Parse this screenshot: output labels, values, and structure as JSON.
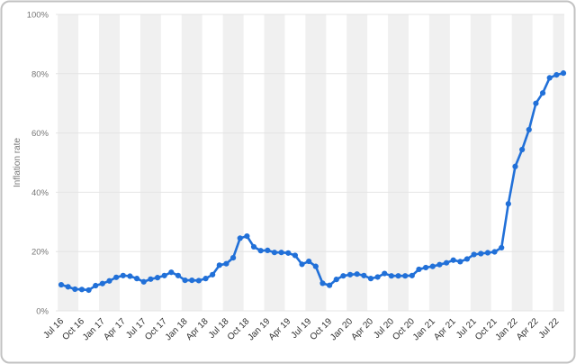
{
  "chart_data": {
    "type": "line",
    "title": "",
    "ylabel": "Inflation rate",
    "xlabel": "",
    "ylim": [
      0,
      100
    ],
    "y_tick_values": [
      0,
      20,
      40,
      60,
      80,
      100
    ],
    "y_tick_labels": [
      "0%",
      "20%",
      "40%",
      "60%",
      "80%",
      "100%"
    ],
    "x_tick_labels": [
      "Jul 16",
      "Oct 16",
      "Jan 17",
      "Apr 17",
      "Jul 17",
      "Oct 17",
      "Jan 18",
      "Apr 18",
      "Jul 18",
      "Oct 18",
      "Jan 19",
      "Apr 19",
      "Jul 19",
      "Oct 19",
      "Jan 20",
      "Apr 20",
      "Jul 20",
      "Oct 20",
      "Jan 21",
      "Apr 21",
      "Jul 21",
      "Oct 21",
      "Jan 22",
      "Apr 22",
      "Jul 22"
    ],
    "months_per_tick": 3,
    "series": [
      {
        "name": "Inflation rate",
        "start_label": "Jul 16",
        "frequency": "monthly",
        "values": [
          8.8,
          8.1,
          7.3,
          7.2,
          7.0,
          8.5,
          9.2,
          10.1,
          11.3,
          11.9,
          11.7,
          10.9,
          9.8,
          10.7,
          11.2,
          11.9,
          13.0,
          11.9,
          10.3,
          10.3,
          10.2,
          10.9,
          12.2,
          15.4,
          15.9,
          17.9,
          24.5,
          25.2,
          21.6,
          20.3,
          20.4,
          19.7,
          19.7,
          19.5,
          18.7,
          15.7,
          16.7,
          15.0,
          9.3,
          8.6,
          10.6,
          11.8,
          12.2,
          12.4,
          11.9,
          10.9,
          11.4,
          12.6,
          11.8,
          11.8,
          11.8,
          11.9,
          14.0,
          14.6,
          15.0,
          15.6,
          16.2,
          17.1,
          16.6,
          17.5,
          19.0,
          19.3,
          19.6,
          19.9,
          21.3,
          36.1,
          48.7,
          54.4,
          61.1,
          70.0,
          73.5,
          78.6,
          79.6,
          80.2
        ]
      }
    ],
    "legend": "none",
    "grid": "horizontal",
    "background_bands": "quarterly-alternating"
  },
  "colors": {
    "line": "#2170d8",
    "point": "#2170d8",
    "band": "#f0f0f0",
    "grid": "#e4e4e4",
    "y_label_text": "#757575",
    "x_label_text": "#303030",
    "axis_title_text": "#757575",
    "border": "#c2c2c2",
    "plot_background": "#ffffff"
  }
}
